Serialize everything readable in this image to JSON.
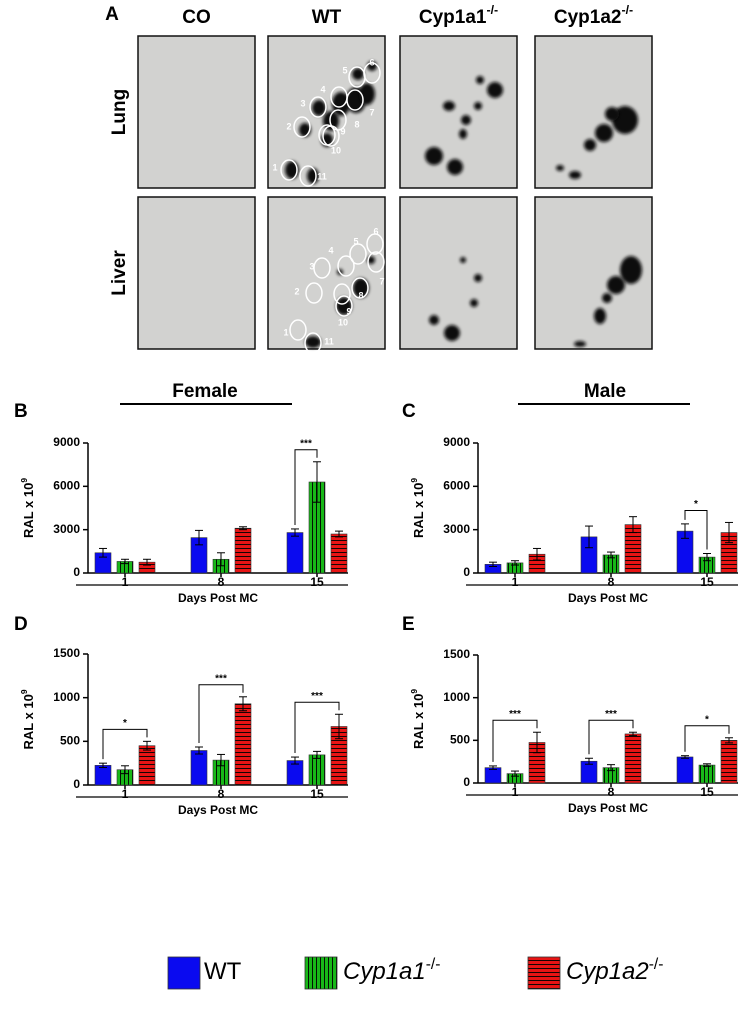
{
  "panel_a": {
    "letter": "A",
    "columns": [
      {
        "text": "CO"
      },
      {
        "text": "WT"
      },
      {
        "text": "Cyp1a1",
        "sup": "-/-"
      },
      {
        "text": "Cyp1a2",
        "sup": "-/-"
      }
    ],
    "rows": [
      "Lung",
      "Liver"
    ],
    "spot_labels": [
      "1",
      "2",
      "3",
      "4",
      "5",
      "6",
      "7",
      "8",
      "9",
      "10",
      "11"
    ]
  },
  "sex_labels": [
    "Female",
    "Male"
  ],
  "legend": [
    {
      "name": "WT",
      "color": "#0a0af0",
      "pattern": "solid"
    },
    {
      "name": "Cyp1a1",
      "sup": "-/-",
      "color": "#18b818",
      "pattern": "vertical"
    },
    {
      "name": "Cyp1a2",
      "sup": "-/-",
      "color": "#e81414",
      "pattern": "horizontal"
    }
  ],
  "chart_data": [
    {
      "type": "bar",
      "panel": "B",
      "y_label": {
        "text": "RAL x 10",
        "sup": "9"
      },
      "x_label": "Days Post MC",
      "categories": [
        "1",
        "8",
        "15"
      ],
      "ylim": [
        0,
        9000
      ],
      "yticks": [
        0,
        3000,
        6000,
        9000
      ],
      "series": [
        {
          "values": [
            1400,
            2450,
            2800
          ],
          "errors": [
            300,
            500,
            250
          ]
        },
        {
          "values": [
            800,
            950,
            6300
          ],
          "errors": [
            150,
            450,
            1400
          ]
        },
        {
          "values": [
            750,
            3100,
            2700
          ],
          "errors": [
            200,
            100,
            200
          ]
        }
      ],
      "annotations": [
        {
          "text": "***",
          "category": 2,
          "from": 0,
          "to": 1
        }
      ]
    },
    {
      "type": "bar",
      "panel": "C",
      "y_label": {
        "text": "RAL x 10",
        "sup": "9"
      },
      "x_label": "Days Post MC",
      "categories": [
        "1",
        "8",
        "15"
      ],
      "ylim": [
        0,
        9000
      ],
      "yticks": [
        0,
        3000,
        6000,
        9000
      ],
      "series": [
        {
          "values": [
            600,
            2500,
            2900
          ],
          "errors": [
            150,
            750,
            500
          ]
        },
        {
          "values": [
            700,
            1250,
            1100
          ],
          "errors": [
            150,
            200,
            250
          ]
        },
        {
          "values": [
            1300,
            3350,
            2800
          ],
          "errors": [
            400,
            550,
            700
          ]
        }
      ],
      "annotations": [
        {
          "text": "*",
          "category": 2,
          "from": 0,
          "to": 1
        }
      ]
    },
    {
      "type": "bar",
      "panel": "D",
      "y_label": {
        "text": "RAL x 10",
        "sup": "9"
      },
      "x_label": "Days Post MC",
      "categories": [
        "1",
        "8",
        "15"
      ],
      "ylim": [
        0,
        1500
      ],
      "yticks": [
        0,
        500,
        1000,
        1500
      ],
      "series": [
        {
          "values": [
            225,
            395,
            280
          ],
          "errors": [
            25,
            40,
            40
          ]
        },
        {
          "values": [
            175,
            285,
            345
          ],
          "errors": [
            45,
            65,
            40
          ]
        },
        {
          "values": [
            450,
            930,
            670
          ],
          "errors": [
            50,
            80,
            140
          ]
        }
      ],
      "annotations": [
        {
          "text": "*",
          "category": 0,
          "from": 0,
          "to": 2
        },
        {
          "text": "***",
          "category": 1,
          "from": 0,
          "to": 2
        },
        {
          "text": "***",
          "category": 2,
          "from": 0,
          "to": 2
        }
      ]
    },
    {
      "type": "bar",
      "panel": "E",
      "y_label": {
        "text": "RAL x 10",
        "sup": "9"
      },
      "x_label": "Days Post MC",
      "categories": [
        "1",
        "8",
        "15"
      ],
      "ylim": [
        0,
        1500
      ],
      "yticks": [
        0,
        500,
        1000,
        1500
      ],
      "series": [
        {
          "values": [
            180,
            255,
            305
          ],
          "errors": [
            20,
            35,
            15
          ]
        },
        {
          "values": [
            110,
            180,
            210
          ],
          "errors": [
            30,
            35,
            15
          ]
        },
        {
          "values": [
            475,
            575,
            500
          ],
          "errors": [
            120,
            20,
            30
          ]
        }
      ],
      "annotations": [
        {
          "text": "***",
          "category": 0,
          "from": 0,
          "to": 2
        },
        {
          "text": "***",
          "category": 1,
          "from": 0,
          "to": 2
        },
        {
          "text": "*",
          "category": 2,
          "from": 0,
          "to": 2
        }
      ]
    }
  ]
}
